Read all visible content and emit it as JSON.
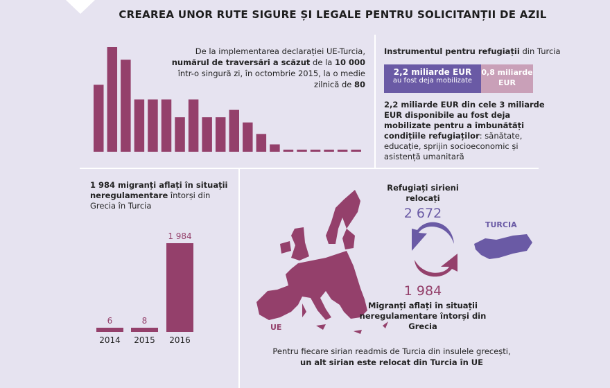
{
  "title": "CREAREA UNOR RUTE SIGURE ȘI LEGALE PENTRU SOLICITANȚII DE AZIL",
  "colors": {
    "background": "#e6e3f0",
    "magenta": "#94406b",
    "purple": "#6a5aa5",
    "light_pink": "#c9a0b8"
  },
  "crossings": {
    "text_1": "De la implementarea declarației UE-Turcia, ",
    "text_bold_1": "numărul de traversări a scăzut",
    "text_2": " de la ",
    "text_bold_2": "10 000",
    "text_3": " într-o singură zi, în octombrie 2015, la o medie zilnică de ",
    "text_bold_3": "80"
  },
  "facility": {
    "title_bold": "Instrumentul pentru refugiații",
    "title_rest": " din Turcia",
    "mobilized_amount": "2,2 miliarde EUR",
    "mobilized_label": "au fost deja mobilizate",
    "remaining": "0,8 miliarde EUR",
    "mobilized_share": 0.733,
    "desc_bold": "2,2 miliarde EUR din cele 3 miliarde EUR disponibile au fost deja mobilizate pentru a îmbunătăți condițiile refugiaților",
    "desc_rest": ": sănătate, educație, sprijin socioeconomic și asistență umanitară"
  },
  "returns": {
    "title_bold": "1 984 migranți aflați în situații neregulamentare",
    "title_rest": " întorși din Grecia în Turcia"
  },
  "exchange": {
    "resettled_label": "Refugiați sirieni relocați",
    "resettled_value": "2 672",
    "returned_value": "1 984",
    "returned_label": "Migranți aflați în situații neregulamentare întorși din Grecia",
    "turkey_label": "TURCIA",
    "eu_label": "UE",
    "footer_1": "Pentru fiecare sirian readmis de Turcia din insulele grecești,",
    "footer_2": "un alt sirian este relocat din Turcia în UE"
  },
  "chart_data": [
    {
      "type": "bar",
      "title": "",
      "values": [
        64,
        100,
        88,
        50,
        50,
        50,
        33,
        50,
        33,
        33,
        40,
        28,
        17,
        7,
        2,
        2,
        2,
        2,
        2,
        2
      ],
      "color": "#94406b",
      "grid": false
    },
    {
      "type": "bar",
      "categories": [
        "2014",
        "2015",
        "2016"
      ],
      "values": [
        6,
        8,
        1984
      ],
      "data_labels": [
        "6",
        "8",
        "1 984"
      ],
      "color": "#94406b",
      "grid": false
    }
  ]
}
